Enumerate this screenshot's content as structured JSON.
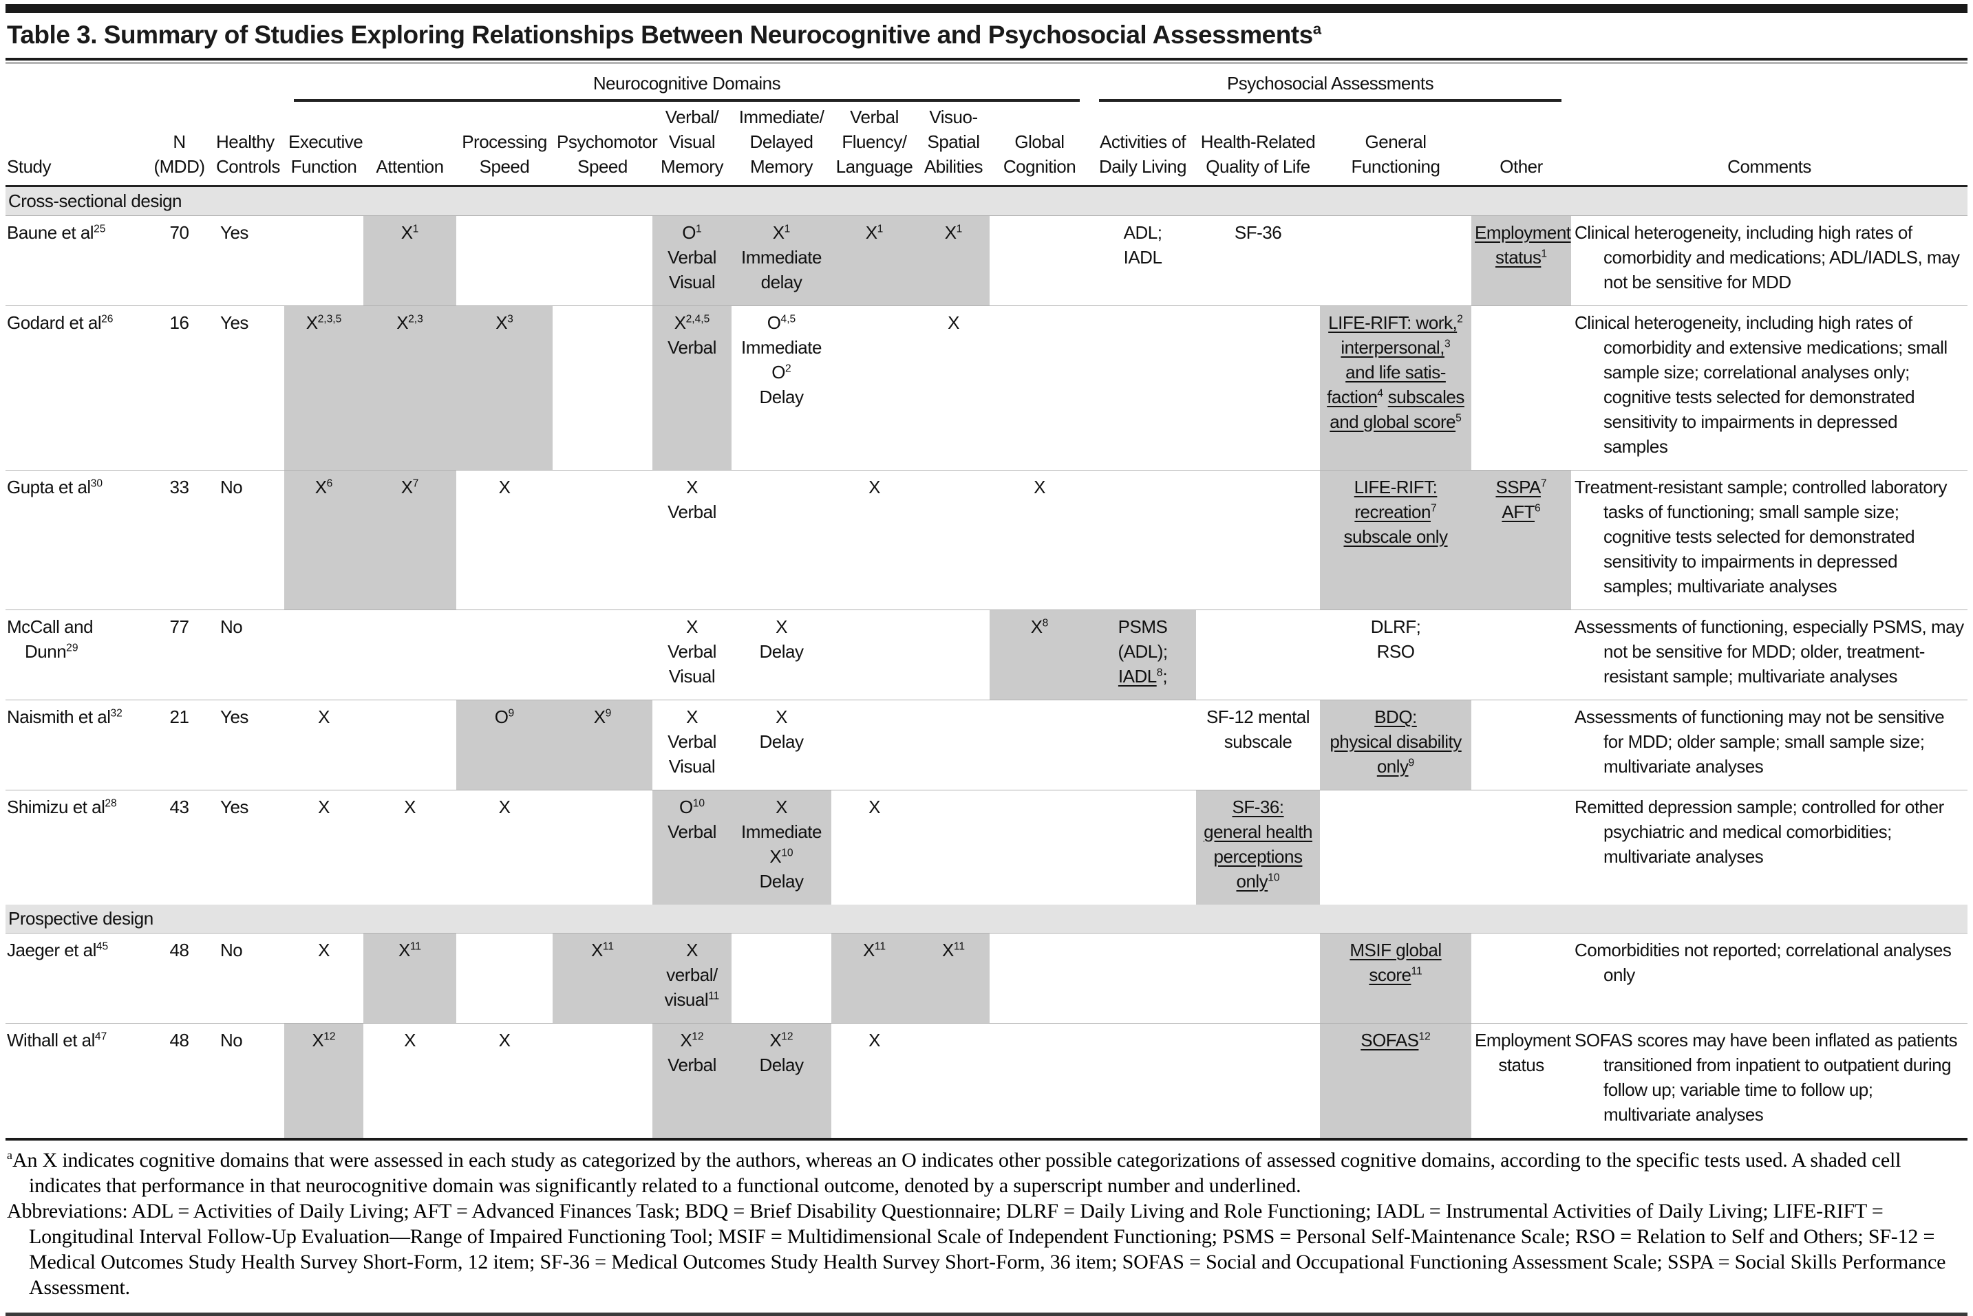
{
  "title": "Table 3. Summary of Studies Exploring Relationships Between Neurocognitive and Psychosocial Assessments^{a}",
  "colors": {
    "ink": "#1a1a1a",
    "shaded_cell": "#cbcbcb",
    "section_band": "#e3e3e3"
  },
  "header": {
    "groups": [
      {
        "label": "",
        "span": 3,
        "ruled": false
      },
      {
        "label": "Neurocognitive Domains",
        "span": 9,
        "ruled": true
      },
      {
        "label": "Psychosocial Assessments",
        "span": 4,
        "ruled": true
      },
      {
        "label": "",
        "span": 1,
        "ruled": false
      }
    ],
    "columns": [
      {
        "label": "Study"
      },
      {
        "label": "N|(MDD)"
      },
      {
        "label": "Healthy|Controls"
      },
      {
        "label": "Executive|Function"
      },
      {
        "label": "Attention"
      },
      {
        "label": "Processing|Speed"
      },
      {
        "label": "Psychomotor|Speed"
      },
      {
        "label": "Verbal/|Visual|Memory"
      },
      {
        "label": "Immediate/|Delayed|Memory"
      },
      {
        "label": "Verbal|Fluency/|Language"
      },
      {
        "label": "Visuo-|Spatial|Abilities"
      },
      {
        "label": "Global|Cognition"
      },
      {
        "label": "Activities of|Daily Living"
      },
      {
        "label": "Health-Related|Quality of Life"
      },
      {
        "label": "General|Functioning"
      },
      {
        "label": "Other"
      },
      {
        "label": "Comments"
      }
    ]
  },
  "sections": [
    {
      "label": "Cross-sectional design",
      "rows": [
        {
          "cells": [
            {
              "lines": [
                "Baune et al^{25}"
              ]
            },
            {
              "lines": [
                "70"
              ]
            },
            {
              "lines": [
                "Yes"
              ]
            },
            null,
            {
              "lines": [
                "X^{1}"
              ],
              "shaded": true
            },
            null,
            null,
            {
              "lines": [
                "O^{1}",
                "Verbal",
                "Visual"
              ],
              "shaded": true
            },
            {
              "lines": [
                "X^{1}",
                "Immediate",
                "delay"
              ],
              "shaded": true
            },
            {
              "lines": [
                "X^{1}"
              ],
              "shaded": true
            },
            {
              "lines": [
                "X^{1}"
              ],
              "shaded": true
            },
            null,
            {
              "lines": [
                "ADL;",
                "IADL"
              ]
            },
            {
              "lines": [
                "SF-36"
              ]
            },
            null,
            {
              "lines": [
                "_Employment_",
                "_status_^{1}"
              ],
              "shaded": true
            },
            {
              "lines": [
                "Clinical heterogeneity, including high rates of comorbidity and medications; ADL/IADLS, may not be sensitive for MDD"
              ]
            }
          ]
        },
        {
          "cells": [
            {
              "lines": [
                "Godard et al^{26}"
              ]
            },
            {
              "lines": [
                "16"
              ]
            },
            {
              "lines": [
                "Yes"
              ]
            },
            {
              "lines": [
                "X^{2,3,5}"
              ],
              "shaded": true
            },
            {
              "lines": [
                "X^{2,3}"
              ],
              "shaded": true
            },
            {
              "lines": [
                "X^{3}"
              ],
              "shaded": true
            },
            null,
            {
              "lines": [
                "X^{2,4,5}",
                "Verbal"
              ],
              "shaded": true
            },
            {
              "lines": [
                "O^{4,5}",
                "Immediate",
                "O^{2}",
                "Delay"
              ]
            },
            null,
            {
              "lines": [
                "X"
              ]
            },
            null,
            null,
            null,
            {
              "lines": [
                "_LIFE-RIFT: work,_^{2}",
                "_interpersonal,_^{3}",
                "_and life satis-_",
                "_faction_^{4} _subscales_",
                "_and global score_^{5}"
              ],
              "shaded": true
            },
            null,
            {
              "lines": [
                "Clinical heterogeneity, including high rates of comorbidity and extensive medications; small sample size; correlational analyses only; cognitive tests selected for demonstrated sensitivity to impairments in depressed samples"
              ]
            }
          ]
        },
        {
          "cells": [
            {
              "lines": [
                "Gupta et al^{30}"
              ]
            },
            {
              "lines": [
                "33"
              ]
            },
            {
              "lines": [
                "No"
              ]
            },
            {
              "lines": [
                "X^{6}"
              ],
              "shaded": true
            },
            {
              "lines": [
                "X^{7}"
              ],
              "shaded": true
            },
            {
              "lines": [
                "X"
              ]
            },
            null,
            {
              "lines": [
                "X",
                "Verbal"
              ]
            },
            null,
            {
              "lines": [
                "X"
              ]
            },
            null,
            {
              "lines": [
                "X"
              ]
            },
            null,
            null,
            {
              "lines": [
                "_LIFE-RIFT:_",
                "_recreation_^{7}",
                "_subscale only_"
              ],
              "shaded": true
            },
            {
              "lines": [
                "_SSPA_^{7}",
                "_AFT_^{6}"
              ],
              "shaded": true
            },
            {
              "lines": [
                "Treatment-resistant sample; controlled laboratory tasks of functioning; small sample size; cognitive tests selected for demonstrated sensitivity to impairments in depressed samples; multivariate analyses"
              ]
            }
          ]
        },
        {
          "cells": [
            {
              "lines": [
                "McCall and",
                "Dunn^{29}"
              ]
            },
            {
              "lines": [
                "77"
              ]
            },
            {
              "lines": [
                "No"
              ]
            },
            null,
            null,
            null,
            null,
            {
              "lines": [
                "X",
                "Verbal",
                "Visual"
              ]
            },
            {
              "lines": [
                "X",
                "Delay"
              ]
            },
            null,
            null,
            {
              "lines": [
                "X^{8}"
              ],
              "shaded": true
            },
            {
              "lines": [
                "PSMS (ADL);",
                "_IADL_^{8};"
              ],
              "shaded": true
            },
            null,
            {
              "lines": [
                "DLRF;",
                "RSO"
              ]
            },
            null,
            {
              "lines": [
                "Assessments of functioning, especially PSMS, may not be sensitive for MDD; older, treatment-resistant sample; multivariate analyses"
              ]
            }
          ]
        },
        {
          "cells": [
            {
              "lines": [
                "Naismith et al^{32}"
              ]
            },
            {
              "lines": [
                "21"
              ]
            },
            {
              "lines": [
                "Yes"
              ]
            },
            {
              "lines": [
                "X"
              ]
            },
            null,
            {
              "lines": [
                "O^{9}"
              ],
              "shaded": true
            },
            {
              "lines": [
                "X^{9}"
              ],
              "shaded": true
            },
            {
              "lines": [
                "X",
                "Verbal",
                "Visual"
              ]
            },
            {
              "lines": [
                "X",
                "Delay"
              ]
            },
            null,
            null,
            null,
            null,
            {
              "lines": [
                "SF-12 mental",
                "subscale"
              ]
            },
            {
              "lines": [
                "_BDQ:_",
                "_physical disability_",
                "_only_^{9}"
              ],
              "shaded": true
            },
            null,
            {
              "lines": [
                "Assessments of functioning may not be sensitive for MDD; older sample; small sample size; multivariate analyses"
              ]
            }
          ]
        },
        {
          "cells": [
            {
              "lines": [
                "Shimizu et al^{28}"
              ]
            },
            {
              "lines": [
                "43"
              ]
            },
            {
              "lines": [
                "Yes"
              ]
            },
            {
              "lines": [
                "X"
              ]
            },
            {
              "lines": [
                "X"
              ]
            },
            {
              "lines": [
                "X"
              ]
            },
            null,
            {
              "lines": [
                "O^{10}",
                "Verbal"
              ],
              "shaded": true
            },
            {
              "lines": [
                "X",
                "Immediate",
                "X^{10}",
                "Delay"
              ],
              "shaded": true
            },
            {
              "lines": [
                "X"
              ]
            },
            null,
            null,
            null,
            {
              "lines": [
                "_SF-36:_",
                "_general health_",
                "_perceptions_",
                "_only_^{10}"
              ],
              "shaded": true
            },
            null,
            null,
            {
              "lines": [
                "Remitted depression sample; controlled for other psychiatric and medical comorbidities; multivariate analyses"
              ]
            }
          ]
        }
      ]
    },
    {
      "label": "Prospective design",
      "rows": [
        {
          "cells": [
            {
              "lines": [
                "Jaeger et al^{45}"
              ]
            },
            {
              "lines": [
                "48"
              ]
            },
            {
              "lines": [
                "No"
              ]
            },
            {
              "lines": [
                "X"
              ]
            },
            {
              "lines": [
                "X^{11}"
              ],
              "shaded": true
            },
            null,
            {
              "lines": [
                "X^{11}"
              ],
              "shaded": true
            },
            {
              "lines": [
                "X",
                "verbal/",
                "visual^{11}"
              ],
              "shaded": true
            },
            null,
            {
              "lines": [
                "X^{11}"
              ],
              "shaded": true
            },
            {
              "lines": [
                "X^{11}"
              ],
              "shaded": true
            },
            null,
            null,
            null,
            {
              "lines": [
                "_MSIF global_",
                "_score_^{11}"
              ],
              "shaded": true
            },
            null,
            {
              "lines": [
                "Comorbidities not reported; correlational analyses only"
              ]
            }
          ]
        },
        {
          "cells": [
            {
              "lines": [
                "Withall et al^{47}"
              ]
            },
            {
              "lines": [
                "48"
              ]
            },
            {
              "lines": [
                "No"
              ]
            },
            {
              "lines": [
                "X^{12}"
              ],
              "shaded": true
            },
            {
              "lines": [
                "X"
              ]
            },
            {
              "lines": [
                "X"
              ]
            },
            null,
            {
              "lines": [
                "X^{12}",
                "Verbal"
              ],
              "shaded": true
            },
            {
              "lines": [
                "X^{12}",
                "Delay"
              ],
              "shaded": true
            },
            {
              "lines": [
                "X"
              ]
            },
            null,
            null,
            null,
            null,
            {
              "lines": [
                "_SOFAS_^{12}"
              ],
              "shaded": true
            },
            {
              "lines": [
                "Employment",
                "status"
              ]
            },
            {
              "lines": [
                "SOFAS scores may have been inflated as patients transitioned from inpatient to outpatient during follow up; variable time to follow up; multivariate analyses"
              ]
            }
          ]
        }
      ]
    }
  ],
  "footnotes": [
    "^{a}An X indicates cognitive domains that were assessed in each study as categorized by the authors, whereas an O indicates other possible categorizations of assessed cognitive domains, according to the specific tests used. A shaded cell indicates that performance in that neurocognitive domain was significantly related to a functional outcome, denoted by a superscript number and underlined.",
    "Abbreviations: ADL = Activities of Daily Living; AFT = Advanced Finances Task; BDQ = Brief Disability Questionnaire; DLRF = Daily Living and Role Functioning; IADL = Instrumental Activities of Daily Living; LIFE-RIFT = Longitudinal Interval Follow-Up Evaluation—Range of Impaired Functioning Tool; MSIF = Multidimensional Scale of Independent Functioning; PSMS = Personal Self-Maintenance Scale; RSO = Relation to Self and Others; SF-12 = Medical Outcomes Study Health Survey Short-Form, 12 item; SF-36 = Medical Outcomes Study Health Survey Short-Form, 36 item; SOFAS = Social and Occupational Functioning Assessment Scale; SSPA = Social Skills Performance Assessment."
  ]
}
